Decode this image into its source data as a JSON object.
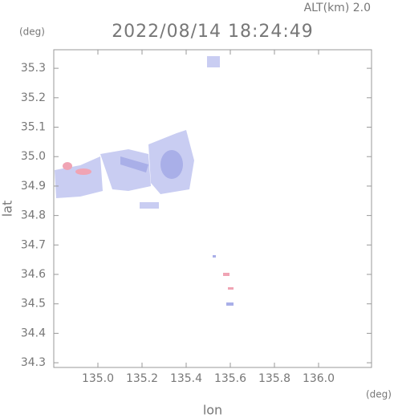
{
  "chart_data": {
    "type": "map",
    "title": "2022/08/14 18:24:49",
    "subtitle": "ALT(km) 2.0",
    "x_label": "lon",
    "y_label": "lat",
    "x_unit": "(deg)",
    "y_unit": "(deg)",
    "xlim": [
      134.8,
      136.24
    ],
    "ylim": [
      34.284,
      35.363
    ],
    "xticks": [
      {
        "value": 135,
        "label": "135.0"
      },
      135.2,
      135.4,
      135.6,
      135.8,
      {
        "value": 136,
        "label": "136.0"
      }
    ],
    "yticks": [
      34.3,
      34.4,
      34.5,
      34.6,
      34.7,
      34.8,
      34.9,
      {
        "value": 35,
        "label": "35.0"
      },
      35.1,
      35.2,
      35.3
    ]
  }
}
